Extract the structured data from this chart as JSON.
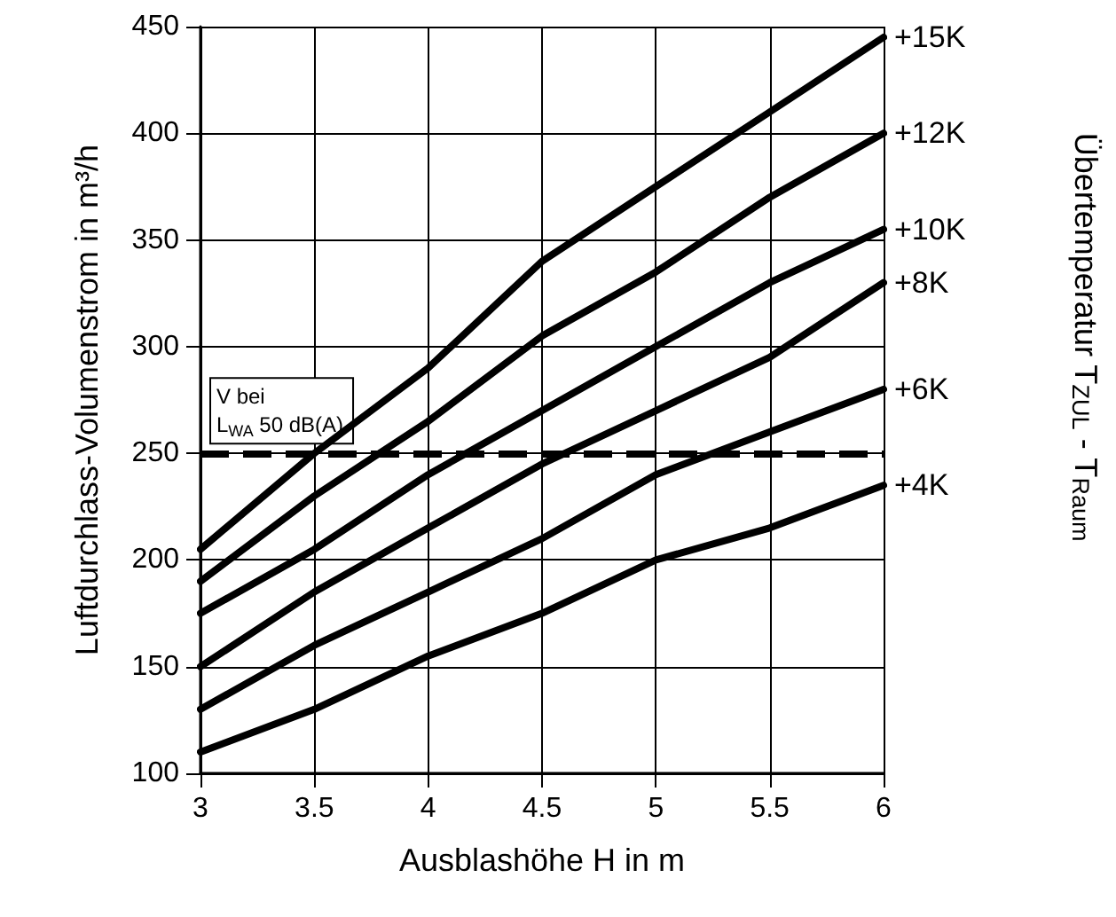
{
  "chart_data": {
    "type": "line",
    "xlabel": "Ausblashöhe H in m",
    "ylabel": "Luftdurchlass-Volumenstrom in m³/h",
    "legend_title": "Übertemperatur T$_{ZUL}$ - T$_{Raum}$",
    "x": [
      3,
      3.5,
      4,
      4.5,
      5,
      5.5,
      6
    ],
    "series": [
      {
        "name": "+15K",
        "color": "#000000",
        "values": [
          205,
          250,
          290,
          340,
          375,
          410,
          445
        ]
      },
      {
        "name": "+12K",
        "color": "#000000",
        "values": [
          190,
          230,
          265,
          305,
          335,
          370,
          400
        ]
      },
      {
        "name": "+10K",
        "color": "#000000",
        "values": [
          175,
          205,
          240,
          270,
          300,
          330,
          355
        ]
      },
      {
        "name": "+8K",
        "color": "#000000",
        "values": [
          150,
          185,
          215,
          245,
          270,
          295,
          330
        ]
      },
      {
        "name": "+6K",
        "color": "#000000",
        "values": [
          130,
          160,
          185,
          210,
          240,
          260,
          280
        ]
      },
      {
        "name": "+4K",
        "color": "#000000",
        "values": [
          110,
          130,
          155,
          175,
          200,
          215,
          235
        ]
      }
    ],
    "ref_lines": [
      {
        "axis": "y",
        "value": 250,
        "label": "V bei\nL$_{WA}$ 50 dB(A)",
        "color": "#000000",
        "line_style": "dashed"
      }
    ],
    "xlim": [
      3,
      6
    ],
    "xticks": [
      3,
      3.5,
      4,
      4.5,
      5,
      5.5,
      6
    ],
    "ylim": [
      100,
      450
    ],
    "yticks": [
      100,
      150,
      200,
      250,
      300,
      350,
      400,
      450
    ],
    "grid": true,
    "legend": false,
    "marker": "none",
    "line_style": "solid"
  }
}
